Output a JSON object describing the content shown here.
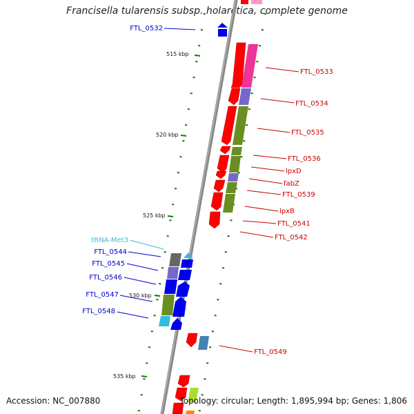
{
  "title": "Francisella tularensis subsp. holarctica, complete genome",
  "accession_text": "Accession: NC_007880",
  "summary_text": "Topology: circular; Length: 1,895,994 bp; Genes: 1,806",
  "ticks": [
    {
      "label": "515 kbp"
    },
    {
      "label": "520 kbp"
    },
    {
      "label": "525 kbp"
    },
    {
      "label": "530 kbp"
    },
    {
      "label": "535 kbp"
    }
  ],
  "left_labels": [
    {
      "text": "FTL_0532",
      "color": "#0000cc"
    },
    {
      "text": "tRNA-Met3",
      "color": "#33bbdd"
    },
    {
      "text": "FTL_0544",
      "color": "#0000cc"
    },
    {
      "text": "FTL_0545",
      "color": "#0000cc"
    },
    {
      "text": "FTL_0546",
      "color": "#0000cc"
    },
    {
      "text": "FTL_0547",
      "color": "#0000cc"
    },
    {
      "text": "FTL_0548",
      "color": "#0000cc"
    }
  ],
  "right_labels": [
    {
      "text": "FTL_0533",
      "color": "#cc0000"
    },
    {
      "text": "FTL_0534",
      "color": "#cc0000"
    },
    {
      "text": "FTL_0535",
      "color": "#cc0000"
    },
    {
      "text": "FTL_0536",
      "color": "#cc0000"
    },
    {
      "text": "lpxD",
      "color": "#cc0000"
    },
    {
      "text": "fabZ",
      "color": "#cc0000"
    },
    {
      "text": "FTL_0539",
      "color": "#cc0000"
    },
    {
      "text": "lpxB",
      "color": "#cc0000"
    },
    {
      "text": "FTL_0541",
      "color": "#cc0000"
    },
    {
      "text": "FTL_0542",
      "color": "#cc0000"
    },
    {
      "text": "FTL_0549",
      "color": "#cc0000"
    }
  ],
  "colors": {
    "backbone": "#888888",
    "forward_gene": "#ff0000",
    "reverse_gene": "#0000ee",
    "cog_pink": "#ee3399",
    "cog_purple": "#7766cc",
    "cog_olive": "#6b8e23",
    "cog_steel": "#4682b4",
    "cog_grey": "#666666",
    "trna": "#33bbdd",
    "tick_green": "#117711"
  }
}
